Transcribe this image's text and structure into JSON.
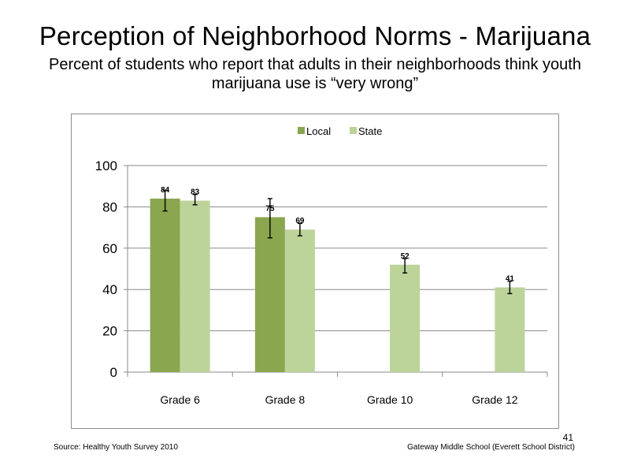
{
  "slide": {
    "title": "Perception  of Neighborhood  Norms - Marijuana",
    "subtitle": "Percent of students  who report that adults in their neighborhoods think youth marijuana  use is “very wrong”",
    "source": "Source: Healthy  Youth Survey 2010",
    "school": "Gateway Middle  School  (Everett School District)",
    "page_number": "41"
  },
  "chart_data": {
    "type": "bar",
    "categories": [
      "Grade 6",
      "Grade 8",
      "Grade 10",
      "Grade 12"
    ],
    "series": [
      {
        "name": "Local",
        "color": "#8aa64f",
        "values": [
          84,
          75,
          null,
          null
        ],
        "labels": [
          "84",
          "75",
          "",
          ""
        ],
        "error_low": [
          78,
          65,
          null,
          null
        ],
        "error_high": [
          88,
          84,
          null,
          null
        ]
      },
      {
        "name": "State",
        "color": "#bcd39a",
        "values": [
          83,
          69,
          52,
          41
        ],
        "labels": [
          "83",
          "69",
          "52",
          "41"
        ],
        "error_low": [
          81,
          66,
          48,
          38
        ],
        "error_high": [
          86,
          72,
          55,
          44
        ]
      }
    ],
    "ylim": [
      0,
      100
    ],
    "yticks": [
      "0",
      "20",
      "40",
      "60",
      "80",
      "100"
    ],
    "ytick_values": [
      0,
      20,
      40,
      60,
      80,
      100
    ],
    "grid": true,
    "legend_position": "top"
  }
}
